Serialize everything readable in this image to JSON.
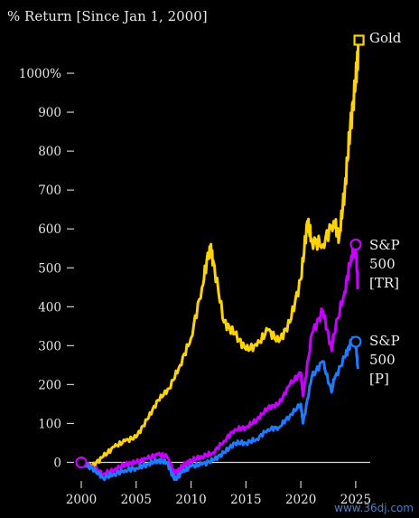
{
  "chart_data": {
    "type": "line",
    "title": "% Return [Since Jan 1, 2000]",
    "xlabel": "",
    "ylabel": "",
    "xlim": [
      2000,
      2025.5
    ],
    "ylim": [
      -50,
      1100
    ],
    "x_ticks": [
      2000,
      2005,
      2010,
      2015,
      2020,
      2025
    ],
    "x_tick_labels": [
      "2000",
      "2005",
      "2010",
      "2015",
      "2020",
      "2025"
    ],
    "y_ticks": [
      0,
      100,
      200,
      300,
      400,
      500,
      600,
      700,
      800,
      900,
      1000
    ],
    "y_tick_labels": [
      "0",
      "100",
      "200",
      "300",
      "400",
      "500",
      "600",
      "700",
      "800",
      "900",
      "1000%"
    ],
    "grid": false,
    "legend": "end-of-line labels",
    "series": [
      {
        "name": "Gold",
        "label_lines": [
          "Gold"
        ],
        "color": "#ffd400",
        "marker": "square",
        "x": [
          2000,
          2001,
          2002,
          2003,
          2004,
          2005,
          2006,
          2007,
          2008,
          2009,
          2010,
          2011,
          2011.7,
          2012,
          2013,
          2014,
          2015,
          2016,
          2017,
          2018,
          2019,
          2020,
          2020.6,
          2021,
          2022,
          2023,
          2023.5,
          2024,
          2024.5,
          2025,
          2025.3
        ],
        "y": [
          0,
          -10,
          15,
          40,
          55,
          65,
          110,
          160,
          190,
          250,
          320,
          450,
          555,
          520,
          360,
          330,
          290,
          300,
          340,
          310,
          360,
          470,
          620,
          570,
          560,
          620,
          580,
          700,
          860,
          980,
          1085
        ]
      },
      {
        "name": "S&P 500 [TR]",
        "label_lines": [
          "S&P",
          "500",
          "[TR]"
        ],
        "color": "#c800ff",
        "marker": "circle",
        "x": [
          2000,
          2001,
          2002,
          2003,
          2004,
          2005,
          2006,
          2007,
          2007.8,
          2008.5,
          2009.2,
          2010,
          2011,
          2012,
          2013,
          2014,
          2015,
          2016,
          2017,
          2018,
          2019,
          2020,
          2020.2,
          2021,
          2022,
          2022.8,
          2023,
          2024,
          2024.6,
          2025,
          2025.2
        ],
        "y": [
          0,
          -10,
          -30,
          -20,
          -5,
          0,
          10,
          20,
          15,
          -30,
          -10,
          5,
          15,
          25,
          55,
          85,
          90,
          110,
          140,
          150,
          200,
          230,
          170,
          330,
          390,
          290,
          330,
          440,
          530,
          560,
          450
        ]
      },
      {
        "name": "S&P 500 [P]",
        "label_lines": [
          "S&P",
          "500",
          "[P]"
        ],
        "color": "#1e7bff",
        "marker": "circle",
        "x": [
          2000,
          2001,
          2002,
          2003,
          2004,
          2005,
          2006,
          2007,
          2007.8,
          2008.5,
          2009.2,
          2010,
          2011,
          2012,
          2013,
          2014,
          2015,
          2016,
          2017,
          2018,
          2019,
          2020,
          2020.2,
          2021,
          2022,
          2022.8,
          2023,
          2024,
          2024.6,
          2025,
          2025.2
        ],
        "y": [
          0,
          -15,
          -40,
          -30,
          -20,
          -15,
          -5,
          5,
          0,
          -45,
          -25,
          -10,
          -5,
          5,
          25,
          50,
          50,
          60,
          85,
          90,
          120,
          150,
          100,
          220,
          260,
          180,
          210,
          270,
          310,
          310,
          240
        ]
      }
    ]
  },
  "watermark": "www.36dj.com"
}
